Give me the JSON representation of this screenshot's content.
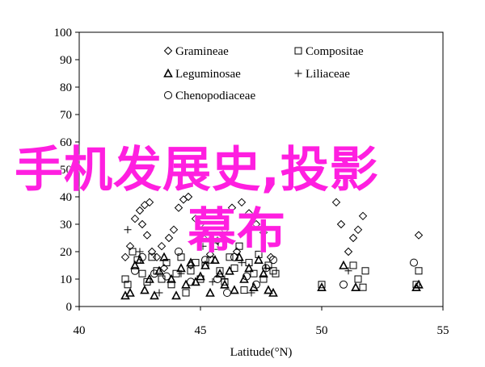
{
  "chart_data": {
    "type": "scatter",
    "title": "",
    "xlabel": "Latitude(°N)",
    "ylabel": "",
    "xlim": [
      40,
      55
    ],
    "ylim": [
      0,
      100
    ],
    "xticks": [
      40,
      45,
      50,
      55
    ],
    "yticks": [
      0,
      10,
      20,
      30,
      40,
      50,
      60,
      70,
      80,
      90,
      100
    ],
    "grid": false,
    "legend_position": "top-center",
    "series": [
      {
        "name": "Gramineae",
        "marker": "diamond",
        "points": [
          [
            42.3,
            32
          ],
          [
            42.5,
            35
          ],
          [
            42.7,
            37
          ],
          [
            42.9,
            38
          ],
          [
            42.6,
            30
          ],
          [
            42.8,
            26
          ],
          [
            43.0,
            20
          ],
          [
            43.2,
            18
          ],
          [
            43.4,
            22
          ],
          [
            43.7,
            25
          ],
          [
            43.9,
            28
          ],
          [
            44.1,
            36
          ],
          [
            44.3,
            39
          ],
          [
            44.5,
            40
          ],
          [
            44.8,
            32
          ],
          [
            45.0,
            30
          ],
          [
            45.3,
            26
          ],
          [
            45.7,
            24
          ],
          [
            46.0,
            28
          ],
          [
            46.3,
            36
          ],
          [
            46.7,
            38
          ],
          [
            47.0,
            34
          ],
          [
            47.3,
            30
          ],
          [
            47.6,
            27
          ],
          [
            43.5,
            14
          ],
          [
            44.6,
            15
          ],
          [
            45.4,
            19
          ],
          [
            46.5,
            20
          ],
          [
            47.9,
            18
          ],
          [
            50.6,
            38
          ],
          [
            50.8,
            30
          ],
          [
            51.1,
            20
          ],
          [
            51.3,
            25
          ],
          [
            51.5,
            28
          ],
          [
            51.7,
            33
          ],
          [
            54.0,
            26
          ],
          [
            41.9,
            18
          ],
          [
            42.1,
            22
          ]
        ]
      },
      {
        "name": "Compositae",
        "marker": "square",
        "points": [
          [
            41.9,
            10
          ],
          [
            42.0,
            8
          ],
          [
            42.2,
            20
          ],
          [
            42.4,
            17
          ],
          [
            42.6,
            12
          ],
          [
            42.8,
            9
          ],
          [
            43.0,
            18
          ],
          [
            43.2,
            13
          ],
          [
            43.4,
            10
          ],
          [
            43.6,
            16
          ],
          [
            43.8,
            8
          ],
          [
            44.0,
            12
          ],
          [
            44.2,
            18
          ],
          [
            44.4,
            5
          ],
          [
            44.6,
            13
          ],
          [
            44.8,
            16
          ],
          [
            45.0,
            10
          ],
          [
            45.2,
            15
          ],
          [
            45.4,
            17
          ],
          [
            45.6,
            22
          ],
          [
            45.8,
            13
          ],
          [
            46.0,
            9
          ],
          [
            46.2,
            18
          ],
          [
            46.4,
            14
          ],
          [
            46.6,
            22
          ],
          [
            46.8,
            6
          ],
          [
            47.0,
            16
          ],
          [
            47.2,
            12
          ],
          [
            47.4,
            19
          ],
          [
            47.6,
            10
          ],
          [
            47.8,
            15
          ],
          [
            48.0,
            13
          ],
          [
            48.1,
            12
          ],
          [
            50.0,
            8
          ],
          [
            51.3,
            15
          ],
          [
            51.5,
            10
          ],
          [
            51.7,
            7
          ],
          [
            51.8,
            13
          ],
          [
            53.9,
            8
          ],
          [
            54.0,
            13
          ]
        ]
      },
      {
        "name": "Leguminosae",
        "marker": "triangle",
        "points": [
          [
            41.9,
            4
          ],
          [
            42.1,
            5
          ],
          [
            42.3,
            15
          ],
          [
            42.5,
            17
          ],
          [
            42.7,
            6
          ],
          [
            42.9,
            10
          ],
          [
            43.1,
            4
          ],
          [
            43.3,
            13
          ],
          [
            43.5,
            18
          ],
          [
            43.8,
            10
          ],
          [
            44.0,
            4
          ],
          [
            44.2,
            14
          ],
          [
            44.4,
            8
          ],
          [
            44.6,
            16
          ],
          [
            44.8,
            9
          ],
          [
            45.0,
            11
          ],
          [
            45.2,
            15
          ],
          [
            45.4,
            5
          ],
          [
            45.6,
            17
          ],
          [
            45.8,
            12
          ],
          [
            46.0,
            8
          ],
          [
            46.2,
            13
          ],
          [
            46.4,
            6
          ],
          [
            46.6,
            18
          ],
          [
            46.8,
            10
          ],
          [
            47.0,
            14
          ],
          [
            47.2,
            7
          ],
          [
            47.4,
            17
          ],
          [
            47.6,
            12
          ],
          [
            47.8,
            6
          ],
          [
            48.0,
            5
          ],
          [
            50.0,
            7
          ],
          [
            50.9,
            15
          ],
          [
            51.4,
            7
          ],
          [
            53.9,
            7
          ],
          [
            54.0,
            8
          ]
        ]
      },
      {
        "name": "Liliaceae",
        "marker": "plus",
        "points": [
          [
            42.0,
            28
          ],
          [
            42.5,
            20
          ],
          [
            43.3,
            5
          ],
          [
            44.2,
            12
          ],
          [
            45.1,
            22
          ],
          [
            45.5,
            9
          ],
          [
            46.0,
            10
          ],
          [
            46.7,
            16
          ],
          [
            47.1,
            5
          ],
          [
            47.7,
            14
          ],
          [
            51.1,
            13
          ]
        ]
      },
      {
        "name": "Chenopodiaceae",
        "marker": "circle",
        "points": [
          [
            42.3,
            13
          ],
          [
            42.6,
            18
          ],
          [
            43.1,
            12
          ],
          [
            43.6,
            11
          ],
          [
            44.1,
            20
          ],
          [
            44.6,
            9
          ],
          [
            45.2,
            17
          ],
          [
            45.7,
            10
          ],
          [
            46.1,
            5
          ],
          [
            46.4,
            18
          ],
          [
            46.9,
            11
          ],
          [
            47.3,
            8
          ],
          [
            47.7,
            14
          ],
          [
            48.0,
            17
          ],
          [
            50.9,
            8
          ],
          [
            53.8,
            16
          ]
        ]
      }
    ]
  },
  "watermark": {
    "line1": "手机发展史,投影",
    "line2": "幕布",
    "color": "#ff1fe0"
  }
}
